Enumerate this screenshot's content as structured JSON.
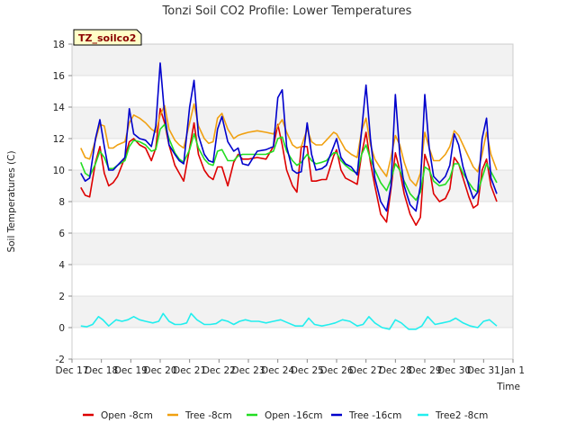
{
  "chart_data": {
    "type": "line",
    "title": "Tonzi Soil CO2 Profile: Lower Temperatures",
    "xlabel": "Time",
    "ylabel": "Soil Temperatures (C)",
    "badge": "TZ_soilco2",
    "ylim": [
      -2,
      18
    ],
    "yticks": [
      -2,
      0,
      2,
      4,
      6,
      8,
      10,
      12,
      14,
      16,
      18
    ],
    "xlim": [
      0,
      15
    ],
    "xticks": [
      {
        "value": 0,
        "label": "Dec 17"
      },
      {
        "value": 1,
        "label": "Dec 18"
      },
      {
        "value": 2,
        "label": "Dec 19"
      },
      {
        "value": 3,
        "label": "Dec 20"
      },
      {
        "value": 4,
        "label": "Dec 21"
      },
      {
        "value": 5,
        "label": "Dec 22"
      },
      {
        "value": 6,
        "label": "Dec 23"
      },
      {
        "value": 7,
        "label": "Dec 24"
      },
      {
        "value": 8,
        "label": "Dec 25"
      },
      {
        "value": 9,
        "label": "Dec 26"
      },
      {
        "value": 10,
        "label": "Dec 27"
      },
      {
        "value": 11,
        "label": "Dec 28"
      },
      {
        "value": 12,
        "label": "Dec 29"
      },
      {
        "value": 13,
        "label": "Dec 30"
      },
      {
        "value": 14,
        "label": "Dec 31"
      },
      {
        "value": 15,
        "label": "Jan 1"
      }
    ],
    "grid": true,
    "legend_position": "bottom",
    "series": [
      {
        "name": "Open -8cm",
        "color": "#dd0000",
        "x": [
          0.3,
          0.45,
          0.6,
          0.8,
          0.95,
          1.1,
          1.25,
          1.4,
          1.55,
          1.8,
          1.95,
          2.1,
          2.3,
          2.5,
          2.7,
          2.85,
          3.0,
          3.15,
          3.3,
          3.5,
          3.65,
          3.8,
          4.0,
          4.15,
          4.3,
          4.5,
          4.65,
          4.8,
          4.95,
          5.1,
          5.3,
          5.5,
          5.65,
          5.8,
          6.0,
          6.3,
          6.6,
          6.85,
          7.0,
          7.15,
          7.3,
          7.5,
          7.65,
          7.8,
          8.0,
          8.15,
          8.3,
          8.5,
          8.65,
          8.9,
          9.0,
          9.15,
          9.3,
          9.5,
          9.7,
          9.85,
          10.0,
          10.15,
          10.3,
          10.5,
          10.7,
          10.85,
          11.0,
          11.15,
          11.3,
          11.5,
          11.7,
          11.85,
          12.0,
          12.15,
          12.3,
          12.5,
          12.7,
          12.85,
          13.0,
          13.15,
          13.3,
          13.5,
          13.65,
          13.8,
          13.95,
          14.1,
          14.25,
          14.45
        ],
        "y": [
          8.9,
          8.4,
          8.3,
          10.5,
          11.5,
          9.8,
          9.0,
          9.2,
          9.6,
          10.8,
          11.8,
          12.0,
          11.6,
          11.4,
          10.6,
          11.4,
          13.9,
          13.0,
          11.6,
          10.3,
          9.8,
          9.3,
          11.4,
          13.0,
          11.0,
          10.0,
          9.6,
          9.4,
          10.2,
          10.2,
          9.0,
          10.5,
          11.0,
          10.7,
          10.7,
          10.8,
          10.7,
          11.5,
          12.9,
          11.6,
          10.0,
          9.0,
          8.6,
          11.5,
          11.5,
          9.3,
          9.3,
          9.4,
          9.4,
          10.9,
          11.3,
          10.0,
          9.5,
          9.3,
          9.1,
          11.0,
          12.4,
          10.5,
          9.0,
          7.2,
          6.7,
          8.8,
          11.1,
          10.0,
          8.5,
          7.2,
          6.5,
          7.0,
          11.0,
          10.2,
          8.5,
          8.0,
          8.2,
          8.8,
          10.8,
          10.4,
          9.5,
          8.3,
          7.6,
          7.8,
          10.0,
          10.7,
          9.0,
          8.0
        ]
      },
      {
        "name": "Tree -8cm",
        "color": "#f0a010",
        "x": [
          0.3,
          0.45,
          0.6,
          0.8,
          0.95,
          1.1,
          1.25,
          1.4,
          1.55,
          1.8,
          1.95,
          2.1,
          2.3,
          2.5,
          2.7,
          2.85,
          3.0,
          3.15,
          3.3,
          3.5,
          3.65,
          3.8,
          4.0,
          4.15,
          4.3,
          4.5,
          4.65,
          4.8,
          4.95,
          5.1,
          5.3,
          5.5,
          5.65,
          5.8,
          6.0,
          6.3,
          6.6,
          6.85,
          7.0,
          7.15,
          7.3,
          7.5,
          7.65,
          7.8,
          8.0,
          8.15,
          8.3,
          8.5,
          8.65,
          8.9,
          9.0,
          9.15,
          9.3,
          9.5,
          9.7,
          9.85,
          10.0,
          10.15,
          10.3,
          10.5,
          10.7,
          10.85,
          11.0,
          11.15,
          11.3,
          11.5,
          11.7,
          11.85,
          12.0,
          12.15,
          12.3,
          12.5,
          12.7,
          12.85,
          13.0,
          13.15,
          13.3,
          13.5,
          13.65,
          13.8,
          13.95,
          14.1,
          14.25,
          14.45
        ],
        "y": [
          11.4,
          10.8,
          10.7,
          11.9,
          12.9,
          12.8,
          11.4,
          11.4,
          11.6,
          11.8,
          13.0,
          13.5,
          13.3,
          13.0,
          12.6,
          12.4,
          13.5,
          14.1,
          12.6,
          11.9,
          11.6,
          11.4,
          13.0,
          14.2,
          12.8,
          12.0,
          11.7,
          11.8,
          13.3,
          13.6,
          12.6,
          12.0,
          12.2,
          12.3,
          12.4,
          12.5,
          12.4,
          12.3,
          12.8,
          13.2,
          12.4,
          11.6,
          11.4,
          11.5,
          12.6,
          11.8,
          11.6,
          11.6,
          11.9,
          12.4,
          12.3,
          11.8,
          11.3,
          11.0,
          10.8,
          12.5,
          13.3,
          11.6,
          10.7,
          10.1,
          9.6,
          10.8,
          12.2,
          11.6,
          10.5,
          9.4,
          9.0,
          9.8,
          12.4,
          11.4,
          10.6,
          10.6,
          11.0,
          11.5,
          12.5,
          12.2,
          11.6,
          10.8,
          10.2,
          9.9,
          11.0,
          12.4,
          11.0,
          10.0
        ]
      },
      {
        "name": "Open -16cm",
        "color": "#22dd22",
        "x": [
          0.3,
          0.45,
          0.6,
          0.8,
          0.95,
          1.1,
          1.25,
          1.4,
          1.55,
          1.8,
          1.95,
          2.1,
          2.3,
          2.5,
          2.7,
          2.85,
          3.0,
          3.15,
          3.3,
          3.5,
          3.65,
          3.8,
          4.0,
          4.15,
          4.3,
          4.5,
          4.65,
          4.8,
          4.95,
          5.1,
          5.3,
          5.5,
          5.65,
          5.8,
          6.0,
          6.3,
          6.6,
          6.85,
          7.0,
          7.15,
          7.3,
          7.5,
          7.65,
          7.8,
          8.0,
          8.15,
          8.3,
          8.5,
          8.65,
          8.9,
          9.0,
          9.15,
          9.3,
          9.5,
          9.7,
          9.85,
          10.0,
          10.15,
          10.3,
          10.5,
          10.7,
          10.85,
          11.0,
          11.15,
          11.3,
          11.5,
          11.7,
          11.85,
          12.0,
          12.15,
          12.3,
          12.5,
          12.7,
          12.85,
          13.0,
          13.15,
          13.3,
          13.5,
          13.65,
          13.8,
          13.95,
          14.1,
          14.25,
          14.45
        ],
        "y": [
          10.5,
          9.8,
          9.6,
          10.4,
          11.2,
          10.8,
          10.1,
          10.1,
          10.3,
          10.6,
          11.5,
          11.9,
          11.8,
          11.6,
          11.2,
          11.3,
          12.6,
          12.9,
          12.0,
          11.1,
          10.7,
          10.5,
          11.3,
          12.3,
          11.4,
          10.7,
          10.4,
          10.3,
          11.2,
          11.3,
          10.6,
          10.6,
          10.9,
          11.0,
          11.0,
          11.0,
          11.0,
          11.2,
          12.0,
          12.1,
          11.2,
          10.6,
          10.3,
          10.5,
          11.0,
          10.6,
          10.4,
          10.5,
          10.6,
          11.1,
          11.1,
          10.6,
          10.3,
          10.0,
          9.8,
          11.0,
          11.6,
          10.7,
          10.0,
          9.2,
          8.7,
          9.4,
          10.4,
          10.0,
          9.3,
          8.5,
          8.1,
          8.6,
          10.2,
          10.0,
          9.3,
          9.0,
          9.1,
          9.5,
          10.4,
          10.4,
          9.8,
          9.2,
          8.8,
          8.6,
          9.5,
          10.4,
          9.9,
          9.2
        ]
      },
      {
        "name": "Tree -16cm",
        "color": "#0000cc",
        "x": [
          0.3,
          0.45,
          0.6,
          0.8,
          0.95,
          1.1,
          1.25,
          1.4,
          1.55,
          1.8,
          1.95,
          2.1,
          2.3,
          2.5,
          2.7,
          2.85,
          3.0,
          3.15,
          3.3,
          3.5,
          3.65,
          3.8,
          4.0,
          4.15,
          4.3,
          4.5,
          4.65,
          4.8,
          4.95,
          5.1,
          5.3,
          5.5,
          5.65,
          5.8,
          6.0,
          6.3,
          6.6,
          6.85,
          7.0,
          7.15,
          7.3,
          7.5,
          7.65,
          7.8,
          8.0,
          8.15,
          8.3,
          8.5,
          8.65,
          8.9,
          9.0,
          9.15,
          9.3,
          9.5,
          9.7,
          9.85,
          10.0,
          10.15,
          10.3,
          10.5,
          10.7,
          10.85,
          11.0,
          11.15,
          11.3,
          11.5,
          11.7,
          11.85,
          12.0,
          12.15,
          12.3,
          12.5,
          12.7,
          12.85,
          13.0,
          13.15,
          13.3,
          13.5,
          13.65,
          13.8,
          13.95,
          14.1,
          14.25,
          14.45
        ],
        "y": [
          9.8,
          9.3,
          9.5,
          12.0,
          13.2,
          11.5,
          10.0,
          10.0,
          10.3,
          10.8,
          13.9,
          12.3,
          12.0,
          11.9,
          11.5,
          12.8,
          16.8,
          13.5,
          11.6,
          11.0,
          10.6,
          10.4,
          14.0,
          15.7,
          12.2,
          11.0,
          10.6,
          10.5,
          12.6,
          13.4,
          11.8,
          11.2,
          11.4,
          10.4,
          10.3,
          11.2,
          11.3,
          11.5,
          14.6,
          15.1,
          11.5,
          10.0,
          9.8,
          9.9,
          13.0,
          11.0,
          10.0,
          10.1,
          10.3,
          11.5,
          12.0,
          10.8,
          10.4,
          10.2,
          9.7,
          12.5,
          15.4,
          12.0,
          9.5,
          8.0,
          7.4,
          9.0,
          14.8,
          11.0,
          9.0,
          7.8,
          7.4,
          9.0,
          14.8,
          11.4,
          9.6,
          9.2,
          9.6,
          10.3,
          12.3,
          11.6,
          10.2,
          9.0,
          8.2,
          8.6,
          12.0,
          13.3,
          9.5,
          8.5
        ]
      },
      {
        "name": "Tree2 -8cm",
        "color": "#22eeee",
        "x": [
          0.3,
          0.5,
          0.7,
          0.9,
          1.05,
          1.25,
          1.5,
          1.7,
          1.9,
          2.1,
          2.3,
          2.5,
          2.75,
          2.95,
          3.1,
          3.3,
          3.5,
          3.7,
          3.9,
          4.05,
          4.25,
          4.5,
          4.7,
          4.9,
          5.1,
          5.3,
          5.5,
          5.7,
          5.9,
          6.1,
          6.35,
          6.6,
          6.85,
          7.1,
          7.35,
          7.6,
          7.85,
          8.05,
          8.25,
          8.5,
          8.75,
          8.95,
          9.2,
          9.45,
          9.7,
          9.9,
          10.1,
          10.3,
          10.55,
          10.8,
          11.0,
          11.2,
          11.45,
          11.7,
          11.9,
          12.1,
          12.35,
          12.6,
          12.85,
          13.05,
          13.3,
          13.55,
          13.8,
          14.0,
          14.2,
          14.45
        ],
        "y": [
          0.1,
          0.05,
          0.2,
          0.7,
          0.5,
          0.1,
          0.5,
          0.4,
          0.5,
          0.7,
          0.5,
          0.4,
          0.3,
          0.4,
          0.9,
          0.4,
          0.2,
          0.2,
          0.3,
          0.9,
          0.5,
          0.2,
          0.2,
          0.25,
          0.5,
          0.4,
          0.2,
          0.4,
          0.5,
          0.4,
          0.4,
          0.3,
          0.4,
          0.5,
          0.3,
          0.1,
          0.1,
          0.6,
          0.2,
          0.1,
          0.2,
          0.3,
          0.5,
          0.4,
          0.1,
          0.2,
          0.7,
          0.3,
          0.0,
          -0.1,
          0.5,
          0.3,
          -0.1,
          -0.1,
          0.1,
          0.7,
          0.2,
          0.3,
          0.4,
          0.6,
          0.3,
          0.1,
          0.0,
          0.4,
          0.5,
          0.1
        ]
      }
    ]
  }
}
